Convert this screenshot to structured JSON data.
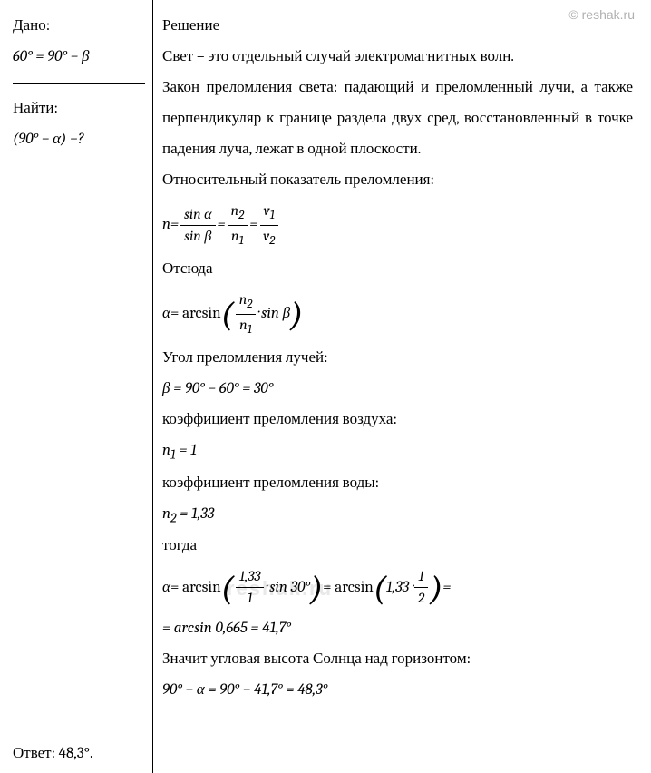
{
  "watermark": "© reshak.ru",
  "watermark_bottom": "reshak.ru",
  "given": {
    "title": "Дано:",
    "line1": "60° = 90° − β"
  },
  "find": {
    "title": "Найти:",
    "line1": "(90° − α) −?"
  },
  "solution": {
    "title": "Решение",
    "p1": "Свет – это отдельный случай электромагнитных волн.",
    "p2": "Закон преломления света: падающий и преломленный лучи, а также перпендикуляр к границе раздела двух сред, восстановленный в точке падения луча, лежат в одной плоскости.",
    "p3": "Относительный показатель преломления:",
    "formula1": {
      "lhs": "n",
      "eq": " = ",
      "f1_num": "sin α",
      "f1_den": "sin β",
      "f2_num": "n",
      "f2_num_sub": "2",
      "f2_den": "n",
      "f2_den_sub": "1",
      "f3_num": "v",
      "f3_num_sub": "1",
      "f3_den": "v",
      "f3_den_sub": "2"
    },
    "p4": "Отсюда",
    "formula2": {
      "lhs": "α",
      "func": " = arcsin ",
      "f_num": "n",
      "f_num_sub": "2",
      "f_den": "n",
      "f_den_sub": "1",
      "suffix": " · sin β"
    },
    "p5": "Угол преломления лучей:",
    "formula3": "β = 90° − 60° = 30°",
    "p6": "коэффициент преломления воздуха:",
    "formula4_lhs": "n",
    "formula4_sub": "1",
    "formula4_rhs": " = 1",
    "p7": "коэффициент преломления воды:",
    "formula5_lhs": "n",
    "formula5_sub": "2",
    "formula5_rhs": " = 1,33",
    "p8": "тогда",
    "formula6": {
      "lhs": "α",
      "func": " = arcsin ",
      "f1_num": "1,33",
      "f1_den": "1",
      "mid": " · sin 30°",
      "func2": " = arcsin ",
      "pre2": "1,33 · ",
      "f2_num": "1",
      "f2_den": "2",
      "suffix": " ="
    },
    "formula7": "= arcsin 0,665 = 41,7°",
    "p9": "Значит угловая высота Солнца над горизонтом:",
    "formula8": "90° − α = 90° − 41,7° = 48,3°"
  },
  "answer": {
    "label": "Ответ: ",
    "value": "48,3°."
  }
}
